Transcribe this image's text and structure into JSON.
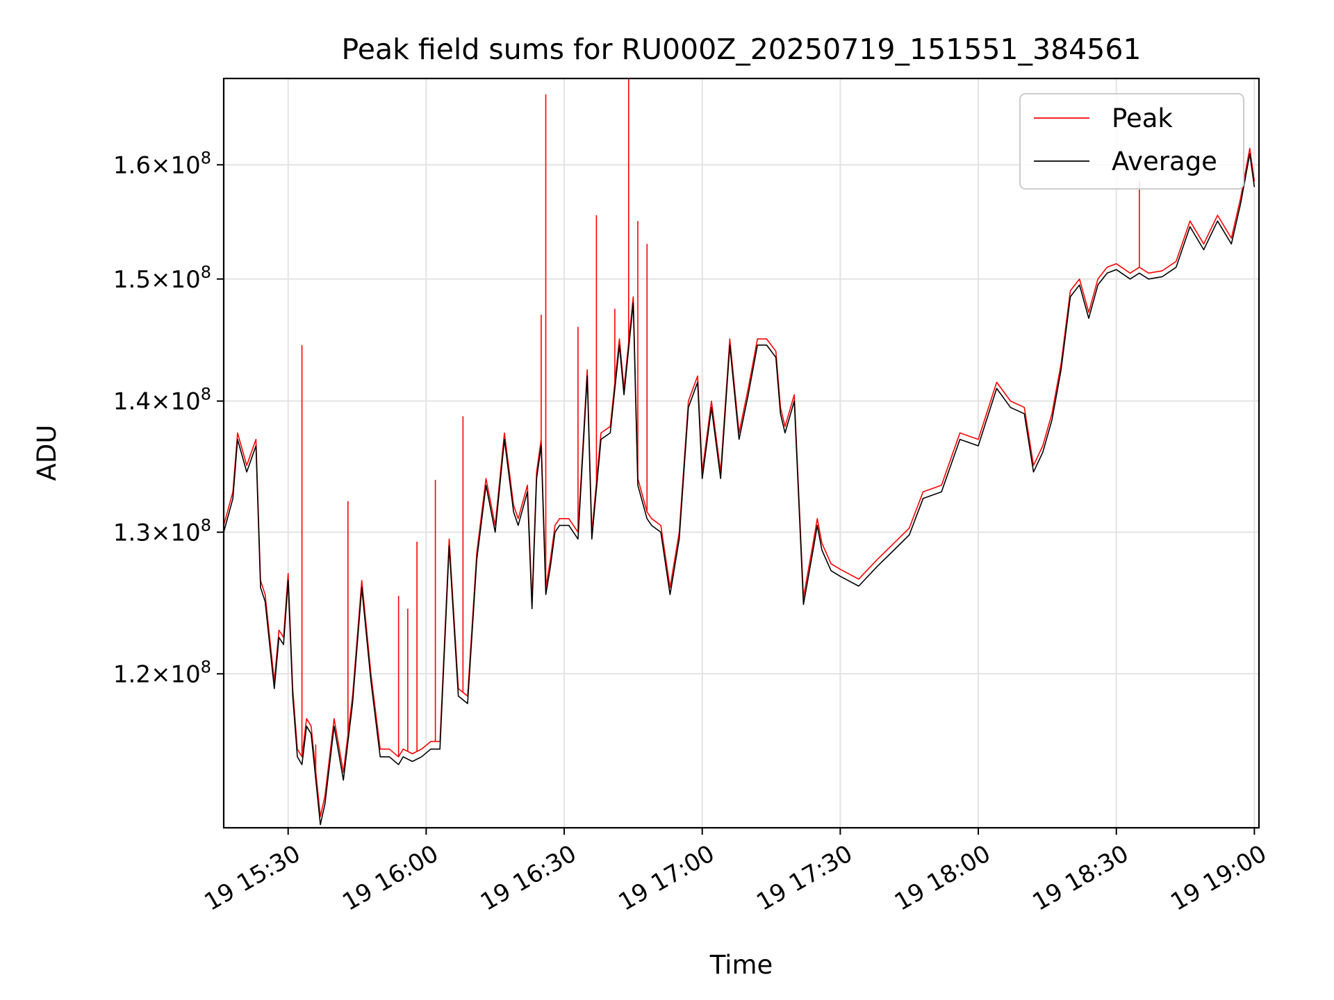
{
  "chart_data": {
    "type": "line",
    "title": "Peak field sums for RU000Z_20250719_151551_384561",
    "xlabel": "Time",
    "ylabel": "ADU",
    "xlim": [
      "19 15:16",
      "19 19:01"
    ],
    "ylim": [
      110000000,
      168000000
    ],
    "y_scale": "log",
    "grid": true,
    "legend_position": "top-right",
    "x_ticks": [
      "19 15:30",
      "19 16:00",
      "19 16:30",
      "19 17:00",
      "19 17:30",
      "19 18:00",
      "19 18:30",
      "19 19:00"
    ],
    "y_ticks": [
      {
        "value": 120000000,
        "mantissa": "1.2",
        "exponent": "8"
      },
      {
        "value": 130000000,
        "mantissa": "1.3",
        "exponent": "8"
      },
      {
        "value": 140000000,
        "mantissa": "1.4",
        "exponent": "8"
      },
      {
        "value": 150000000,
        "mantissa": "1.5",
        "exponent": "8"
      },
      {
        "value": 160000000,
        "mantissa": "1.6",
        "exponent": "8"
      }
    ],
    "series": [
      {
        "name": "Peak",
        "color": "#ff0000"
      },
      {
        "name": "Average",
        "color": "#000000"
      }
    ],
    "x": [
      "19 15:16",
      "19 15:18",
      "19 15:19",
      "19 15:21",
      "19 15:23",
      "19 15:24",
      "19 15:25",
      "19 15:27",
      "19 15:28",
      "19 15:29",
      "19 15:30",
      "19 15:31",
      "19 15:32",
      "19 15:33",
      "19 15:34",
      "19 15:35",
      "19 15:37",
      "19 15:38",
      "19 15:40",
      "19 15:42",
      "19 15:44",
      "19 15:46",
      "19 15:48",
      "19 15:50",
      "19 15:52",
      "19 15:54",
      "19 15:55",
      "19 15:57",
      "19 15:59",
      "19 16:01",
      "19 16:03",
      "19 16:05",
      "19 16:07",
      "19 16:09",
      "19 16:11",
      "19 16:13",
      "19 16:15",
      "19 16:17",
      "19 16:19",
      "19 16:20",
      "19 16:22",
      "19 16:23",
      "19 16:24",
      "19 16:25",
      "19 16:26",
      "19 16:27",
      "19 16:28",
      "19 16:29",
      "19 16:31",
      "19 16:33",
      "19 16:35",
      "19 16:36",
      "19 16:38",
      "19 16:40",
      "19 16:42",
      "19 16:43",
      "19 16:45",
      "19 16:46",
      "19 16:48",
      "19 16:49",
      "19 16:51",
      "19 16:53",
      "19 16:55",
      "19 16:57",
      "19 16:59",
      "19 17:00",
      "19 17:02",
      "19 17:04",
      "19 17:06",
      "19 17:08",
      "19 17:10",
      "19 17:12",
      "19 17:14",
      "19 17:16",
      "19 17:17",
      "19 17:18",
      "19 17:20",
      "19 17:22",
      "19 17:24",
      "19 17:25",
      "19 17:26",
      "19 17:28",
      "19 17:30",
      "19 17:34",
      "19 17:38",
      "19 17:42",
      "19 17:45",
      "19 17:48",
      "19 17:52",
      "19 17:56",
      "19 18:00",
      "19 18:04",
      "19 18:07",
      "19 18:10",
      "19 18:12",
      "19 18:14",
      "19 18:16",
      "19 18:18",
      "19 18:20",
      "19 18:22",
      "19 18:24",
      "19 18:26",
      "19 18:28",
      "19 18:30",
      "19 18:33",
      "19 18:35",
      "19 18:37",
      "19 18:40",
      "19 18:43",
      "19 18:46",
      "19 18:49",
      "19 18:52",
      "19 18:55",
      "19 18:57",
      "19 18:59",
      "19 19:00"
    ],
    "average": [
      130000000,
      132500000,
      137000000,
      134500000,
      136500000,
      126000000,
      125000000,
      119000000,
      122500000,
      122000000,
      126500000,
      118500000,
      114500000,
      114000000,
      116500000,
      116000000,
      110200000,
      111500000,
      116500000,
      113000000,
      118000000,
      126000000,
      119500000,
      114500000,
      114500000,
      114000000,
      114500000,
      114200000,
      114500000,
      115000000,
      115000000,
      129000000,
      118500000,
      118000000,
      128000000,
      133500000,
      130000000,
      137000000,
      131500000,
      130500000,
      133000000,
      124500000,
      134000000,
      136500000,
      125500000,
      127500000,
      130000000,
      130500000,
      130500000,
      129500000,
      142000000,
      129500000,
      137000000,
      137500000,
      144500000,
      140500000,
      148000000,
      133500000,
      131000000,
      130500000,
      130000000,
      125500000,
      129500000,
      139500000,
      141500000,
      134000000,
      139500000,
      134000000,
      144500000,
      137000000,
      140500000,
      144500000,
      144500000,
      143500000,
      139000000,
      137500000,
      140000000,
      124800000,
      128500000,
      130500000,
      128700000,
      127200000,
      126800000,
      126100000,
      127500000,
      128800000,
      129800000,
      132500000,
      133000000,
      137000000,
      136500000,
      141000000,
      139500000,
      139000000,
      134500000,
      136000000,
      138500000,
      142500000,
      148500000,
      149500000,
      146700000,
      149500000,
      150500000,
      150800000,
      150000000,
      150500000,
      150000000,
      150200000,
      151000000,
      154500000,
      152500000,
      155000000,
      153000000,
      156500000,
      161000000,
      158000000
    ],
    "peak": [
      130500000,
      133000000,
      137500000,
      135000000,
      137000000,
      126500000,
      125500000,
      119500000,
      123000000,
      122500000,
      127000000,
      119000000,
      115000000,
      114500000,
      117000000,
      116500000,
      110700000,
      112000000,
      117000000,
      113500000,
      118500000,
      126500000,
      120000000,
      115000000,
      115000000,
      114500000,
      115000000,
      114700000,
      115000000,
      115500000,
      115500000,
      129500000,
      119000000,
      118500000,
      128500000,
      134000000,
      130500000,
      137500000,
      132000000,
      131000000,
      133500000,
      125000000,
      134500000,
      137000000,
      126000000,
      128000000,
      130500000,
      131000000,
      131000000,
      130000000,
      142500000,
      130000000,
      137500000,
      138000000,
      145000000,
      141000000,
      148500000,
      134000000,
      131500000,
      131000000,
      130500000,
      126000000,
      130000000,
      140000000,
      142000000,
      134500000,
      140000000,
      134500000,
      145000000,
      137500000,
      141000000,
      145000000,
      145000000,
      144000000,
      139500000,
      138000000,
      140500000,
      125300000,
      129000000,
      131000000,
      129200000,
      127700000,
      127300000,
      126600000,
      128000000,
      129300000,
      130300000,
      133000000,
      133500000,
      137500000,
      137000000,
      141500000,
      140000000,
      139500000,
      135000000,
      136500000,
      139000000,
      143000000,
      149000000,
      150000000,
      147200000,
      150000000,
      151000000,
      151300000,
      150500000,
      151000000,
      150500000,
      150700000,
      151500000,
      155000000,
      153000000,
      155500000,
      153500000,
      157000000,
      161500000,
      158500000
    ],
    "peak_spikes": [
      {
        "x": "19 15:33",
        "value": 144500000
      },
      {
        "x": "19 15:36",
        "value": 115300000
      },
      {
        "x": "19 15:43",
        "value": 132300000
      },
      {
        "x": "19 15:54",
        "value": 125400000
      },
      {
        "x": "19 15:56",
        "value": 124500000
      },
      {
        "x": "19 15:58",
        "value": 129300000
      },
      {
        "x": "19 16:02",
        "value": 133900000
      },
      {
        "x": "19 16:08",
        "value": 138800000
      },
      {
        "x": "19 16:25",
        "value": 147000000
      },
      {
        "x": "19 16:26",
        "value": 166500000
      },
      {
        "x": "19 16:33",
        "value": 146000000
      },
      {
        "x": "19 16:37",
        "value": 155500000
      },
      {
        "x": "19 16:41",
        "value": 147500000
      },
      {
        "x": "19 16:44",
        "value": 168000000
      },
      {
        "x": "19 16:46",
        "value": 155000000
      },
      {
        "x": "19 16:48",
        "value": 153000000
      },
      {
        "x": "19 18:35",
        "value": 158500000
      }
    ]
  }
}
